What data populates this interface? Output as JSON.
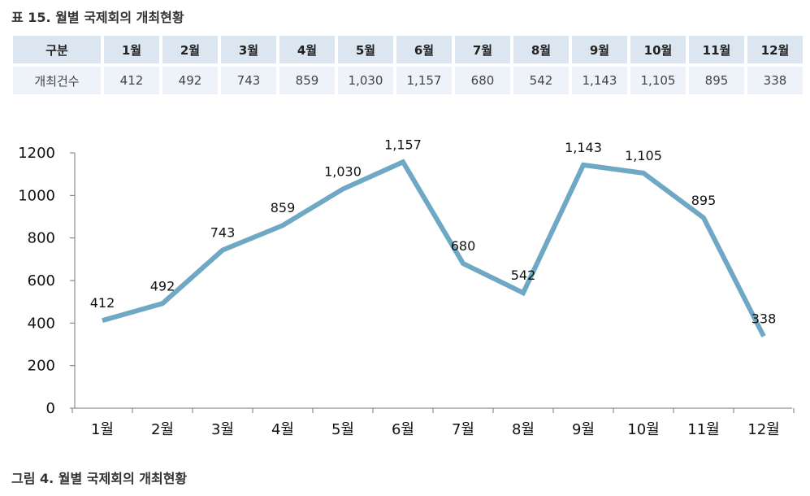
{
  "table_caption": "표 15. 월별 국제회의 개최현황",
  "figure_caption": "그림 4. 월별 국제회의 개최현황",
  "table": {
    "header_label": "구분",
    "row_label": "개최건수",
    "months": [
      "1월",
      "2월",
      "3월",
      "4월",
      "5월",
      "6월",
      "7월",
      "8월",
      "9월",
      "10월",
      "11월",
      "12월"
    ],
    "values": [
      "412",
      "492",
      "743",
      "859",
      "1,030",
      "1,157",
      "680",
      "542",
      "1,143",
      "1,105",
      "895",
      "338"
    ]
  },
  "chart_data": {
    "type": "line",
    "categories": [
      "1월",
      "2월",
      "3월",
      "4월",
      "5월",
      "6월",
      "7월",
      "8월",
      "9월",
      "10월",
      "11월",
      "12월"
    ],
    "series": [
      {
        "values": [
          412,
          492,
          743,
          859,
          1030,
          1157,
          680,
          542,
          1143,
          1105,
          895,
          338
        ]
      }
    ],
    "data_labels": [
      "412",
      "492",
      "743",
      "859",
      "1,030",
      "1,157",
      "680",
      "542",
      "1,143",
      "1,105",
      "895",
      "338"
    ],
    "y_ticks": [
      0,
      200,
      400,
      600,
      800,
      1000,
      1200
    ],
    "ylim": [
      0,
      1200
    ],
    "line_color": "#6fa8c4",
    "grid": false,
    "legend": "none"
  }
}
